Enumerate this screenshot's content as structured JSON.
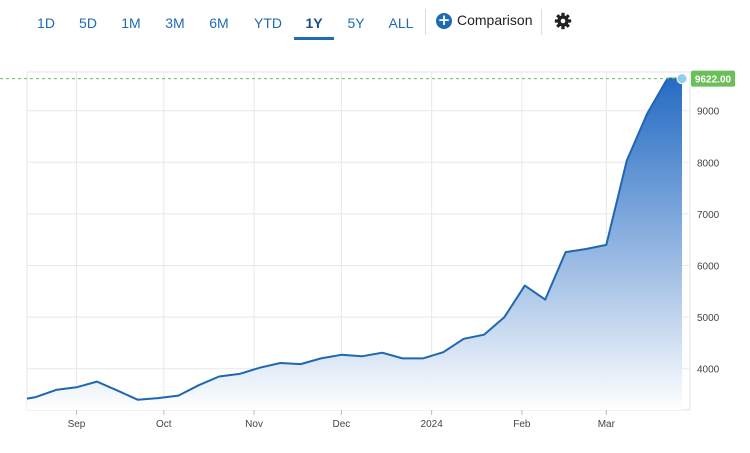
{
  "toolbar": {
    "ranges": [
      "1D",
      "5D",
      "1M",
      "3M",
      "6M",
      "YTD",
      "1Y",
      "5Y",
      "ALL"
    ],
    "active_range": "1Y",
    "comparison_label": "Comparison"
  },
  "colors": {
    "line": "#1f67b1",
    "fill_top": "#1a64c0",
    "fill_bottom": "#ffffff",
    "price_tag": "#6bbf59",
    "accent": "#1f6bb5"
  },
  "icons": {
    "comparison": "plus-circle-icon",
    "settings": "gear-icon"
  },
  "chart_data": {
    "type": "area",
    "x": [
      "2023-08-15",
      "2023-08-18",
      "2023-08-25",
      "2023-09-01",
      "2023-09-08",
      "2023-09-15",
      "2023-09-22",
      "2023-09-29",
      "2023-10-06",
      "2023-10-13",
      "2023-10-20",
      "2023-10-27",
      "2023-11-03",
      "2023-11-10",
      "2023-11-17",
      "2023-11-24",
      "2023-12-01",
      "2023-12-08",
      "2023-12-15",
      "2023-12-22",
      "2023-12-29",
      "2024-01-05",
      "2024-01-12",
      "2024-01-19",
      "2024-01-26",
      "2024-02-02",
      "2024-02-09",
      "2024-02-16",
      "2024-02-23",
      "2024-03-01",
      "2024-03-08",
      "2024-03-15",
      "2024-03-22",
      "2024-03-27"
    ],
    "values": [
      3420,
      3450,
      3590,
      3640,
      3750,
      3580,
      3400,
      3430,
      3480,
      3680,
      3850,
      3900,
      4020,
      4110,
      4090,
      4200,
      4270,
      4240,
      4310,
      4200,
      4200,
      4320,
      4580,
      4660,
      5000,
      5610,
      5340,
      6260,
      6320,
      6400,
      8030,
      8940,
      9622,
      9622
    ],
    "last_price_label": "9622.00",
    "ylim": [
      3200,
      9750
    ],
    "yticks": [
      4000,
      5000,
      6000,
      7000,
      8000,
      9000
    ],
    "ytick_labels": [
      "4000",
      "5000",
      "6000",
      "7000",
      "8000",
      "9000"
    ],
    "xticks": [
      {
        "date": "2023-09-01",
        "label": "Sep"
      },
      {
        "date": "2023-10-01",
        "label": "Oct"
      },
      {
        "date": "2023-11-01",
        "label": "Nov"
      },
      {
        "date": "2023-12-01",
        "label": "Dec"
      },
      {
        "date": "2024-01-01",
        "label": "2024"
      },
      {
        "date": "2024-02-01",
        "label": "Feb"
      },
      {
        "date": "2024-03-01",
        "label": "Mar"
      }
    ],
    "grid": true,
    "title": "",
    "xlabel": "",
    "ylabel": ""
  }
}
